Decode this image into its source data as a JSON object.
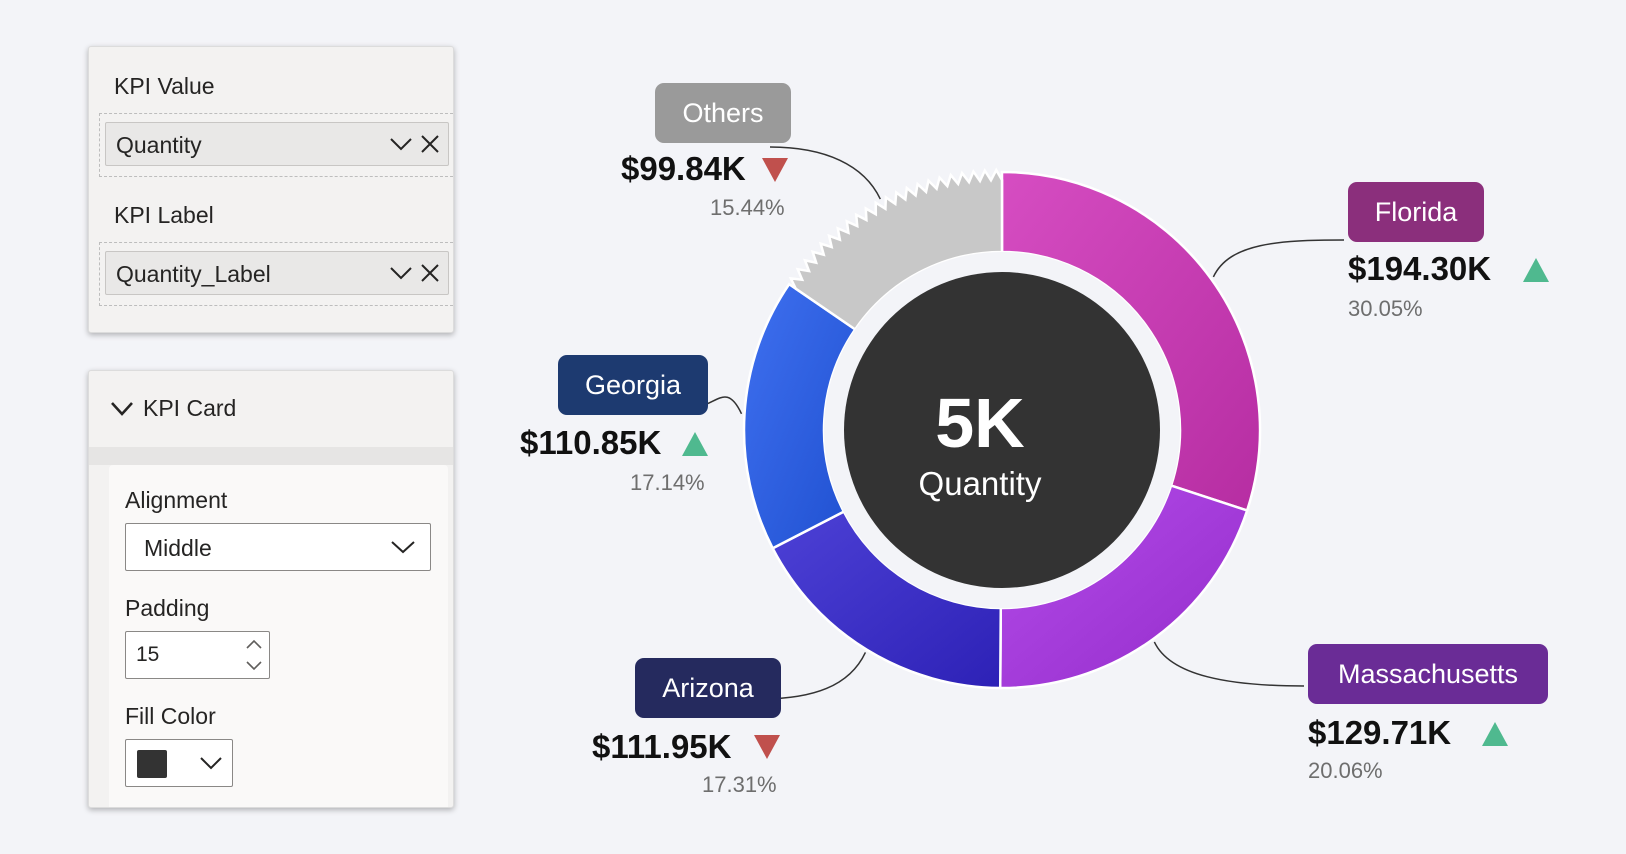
{
  "fields_panel": {
    "kpi_value": {
      "label": "KPI Value",
      "field": "Quantity"
    },
    "kpi_label": {
      "label": "KPI Label",
      "field": "Quantity_Label"
    }
  },
  "format_panel": {
    "section_title": "KPI Card",
    "alignment": {
      "label": "Alignment",
      "value": "Middle"
    },
    "padding": {
      "label": "Padding",
      "value": "15"
    },
    "fill_color": {
      "label": "Fill Color",
      "value": "#333333"
    }
  },
  "kpi": {
    "value": "5K",
    "label": "Quantity"
  },
  "chart_data": {
    "type": "donut",
    "center_value": "5K",
    "center_label": "Quantity",
    "slices": [
      {
        "name": "Florida",
        "value": "$194.30K",
        "percent": "30.05%",
        "share": 30.05,
        "trend": "up",
        "color": "#c43bb0"
      },
      {
        "name": "Massachusetts",
        "value": "$129.71K",
        "percent": "20.06%",
        "share": 20.06,
        "trend": "up",
        "color": "#a23ad8"
      },
      {
        "name": "Arizona",
        "value": "$111.95K",
        "percent": "17.31%",
        "share": 17.31,
        "trend": "down",
        "color": "#3b2fc4"
      },
      {
        "name": "Georgia",
        "value": "$110.85K",
        "percent": "17.14%",
        "share": 17.14,
        "trend": "up",
        "color": "#2d5ede"
      },
      {
        "name": "Others",
        "value": "$99.84K",
        "percent": "15.44%",
        "share": 15.44,
        "trend": "down",
        "color": "#c8c8c8"
      }
    ],
    "label_colors": {
      "Florida": "#8b2f7c",
      "Massachusetts": "#6a2c96",
      "Arizona": "#252a5e",
      "Georgia": "#1d3a70",
      "Others": "#9a9a9a"
    },
    "trend_colors": {
      "up": "#4fb98f",
      "down": "#c0504d"
    }
  }
}
